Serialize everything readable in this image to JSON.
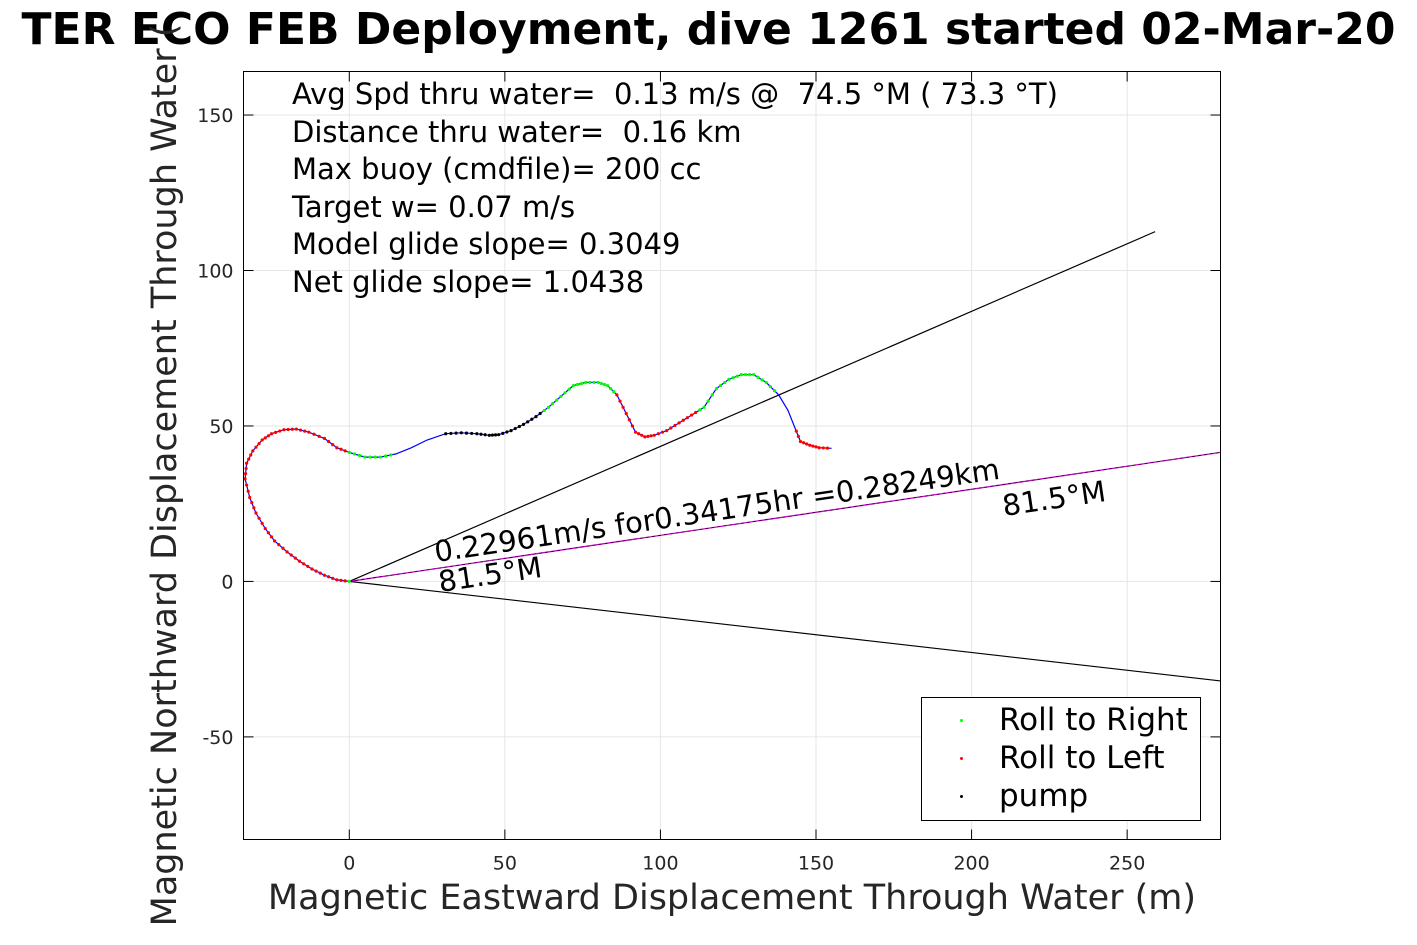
{
  "chart_data": {
    "type": "scatter",
    "title": "TER ECO FEB Deployment, dive 1261 started 02-Mar-20",
    "xlabel": "Magnetic Eastward Displacement Through Water (m)",
    "ylabel": "Magnetic Northward Displacement Through Water (",
    "xlim": [
      -34,
      280
    ],
    "ylim": [
      -83,
      164
    ],
    "xticks": [
      0,
      50,
      100,
      150,
      200,
      250
    ],
    "yticks": [
      -50,
      0,
      50,
      100,
      150
    ],
    "grid": true,
    "legend_position": "bottom-right",
    "info_lines": [
      "Avg Spd thru water=  0.13 m/s @  74.5 °M ( 73.3 °T)",
      "Distance thru water=  0.16 km",
      "Max buoy (cmdfile)= 200 cc",
      "Target w= 0.07 m/s",
      "Model glide slope= 0.3049",
      "Net glide slope= 1.0438"
    ],
    "annotations": {
      "speed_label": "0.22961m/s for0.34175hr =0.28249km",
      "heading_near": "81.5°M",
      "heading_far": "81.5°M"
    },
    "legend": [
      {
        "name": "Roll to Right",
        "color": "#00ff00"
      },
      {
        "name": "Roll to Left",
        "color": "#ff0000"
      },
      {
        "name": "pump",
        "color": "#000000"
      }
    ],
    "track_color": "#0000ff",
    "track": [
      [
        0,
        0
      ],
      [
        -4,
        0.5
      ],
      [
        -8,
        2
      ],
      [
        -12,
        4
      ],
      [
        -16,
        6.5
      ],
      [
        -20,
        9.5
      ],
      [
        -24,
        13
      ],
      [
        -27,
        17
      ],
      [
        -30,
        22
      ],
      [
        -32,
        27
      ],
      [
        -33.5,
        33
      ],
      [
        -33,
        38
      ],
      [
        -31,
        42
      ],
      [
        -28,
        45.5
      ],
      [
        -25,
        47.5
      ],
      [
        -21,
        48.8
      ],
      [
        -17,
        49
      ],
      [
        -13,
        48
      ],
      [
        -8,
        46
      ],
      [
        -4,
        43
      ],
      [
        0,
        41.5
      ],
      [
        5,
        40
      ],
      [
        10,
        40
      ],
      [
        15,
        41
      ],
      [
        20,
        43
      ],
      [
        25,
        45.5
      ],
      [
        31,
        47.5
      ],
      [
        36,
        47.8
      ],
      [
        41,
        47.5
      ],
      [
        45,
        47
      ],
      [
        48,
        47.2
      ],
      [
        52,
        48.5
      ],
      [
        56,
        50.5
      ],
      [
        60,
        53
      ],
      [
        64,
        56
      ],
      [
        68,
        59.5
      ],
      [
        72,
        63
      ],
      [
        76,
        64
      ],
      [
        80,
        64
      ],
      [
        83,
        63
      ],
      [
        86,
        60
      ],
      [
        89,
        54
      ],
      [
        92,
        48
      ],
      [
        95,
        46.5
      ],
      [
        98,
        47
      ],
      [
        102,
        48.5
      ],
      [
        106,
        51
      ],
      [
        110,
        53.5
      ],
      [
        114,
        56
      ],
      [
        118,
        62
      ],
      [
        122,
        65
      ],
      [
        126,
        66.5
      ],
      [
        130,
        66.5
      ],
      [
        134,
        64
      ],
      [
        138,
        60
      ],
      [
        141,
        55
      ],
      [
        143,
        50
      ],
      [
        145,
        45
      ],
      [
        148,
        43.8
      ],
      [
        151,
        43
      ],
      [
        155,
        42.8
      ]
    ],
    "heading_line": {
      "from": [
        0,
        0
      ],
      "to": [
        280,
        41.5
      ],
      "color": "#cc00cc"
    },
    "envelope_lines": [
      {
        "from": [
          0,
          0
        ],
        "to": [
          259,
          112.5
        ]
      },
      {
        "from": [
          0,
          0
        ],
        "to": [
          280,
          -32
        ]
      }
    ]
  }
}
